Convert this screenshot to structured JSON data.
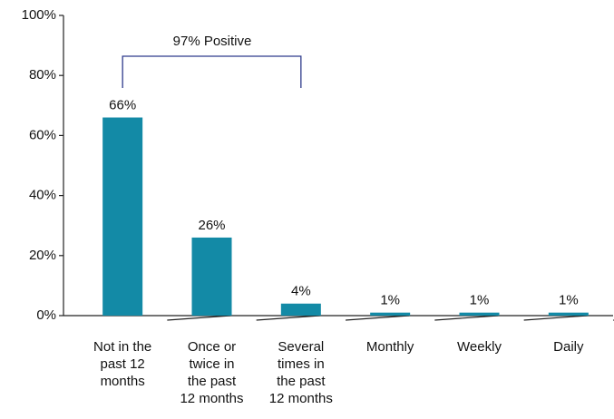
{
  "chart_data": {
    "type": "bar",
    "annotation": "97% Positive",
    "categories": [
      "Not in the\npast 12\nmonths",
      "Once or\ntwice in\nthe past\n12 months",
      "Several\ntimes in\nthe past\n12 months",
      "Monthly",
      "Weekly",
      "Daily"
    ],
    "values": [
      66,
      26,
      4,
      1,
      1,
      1
    ],
    "value_labels": [
      "66%",
      "26%",
      "4%",
      "1%",
      "1%",
      "1%"
    ],
    "color": "#138aa6",
    "ylim": [
      0,
      100
    ],
    "yticks": [
      {
        "value": 0,
        "label": "0%"
      },
      {
        "value": 20,
        "label": "20%"
      },
      {
        "value": 40,
        "label": "40%"
      },
      {
        "value": 60,
        "label": "60%"
      },
      {
        "value": 80,
        "label": "80%"
      },
      {
        "value": 100,
        "label": "100%"
      }
    ],
    "grid": false
  }
}
